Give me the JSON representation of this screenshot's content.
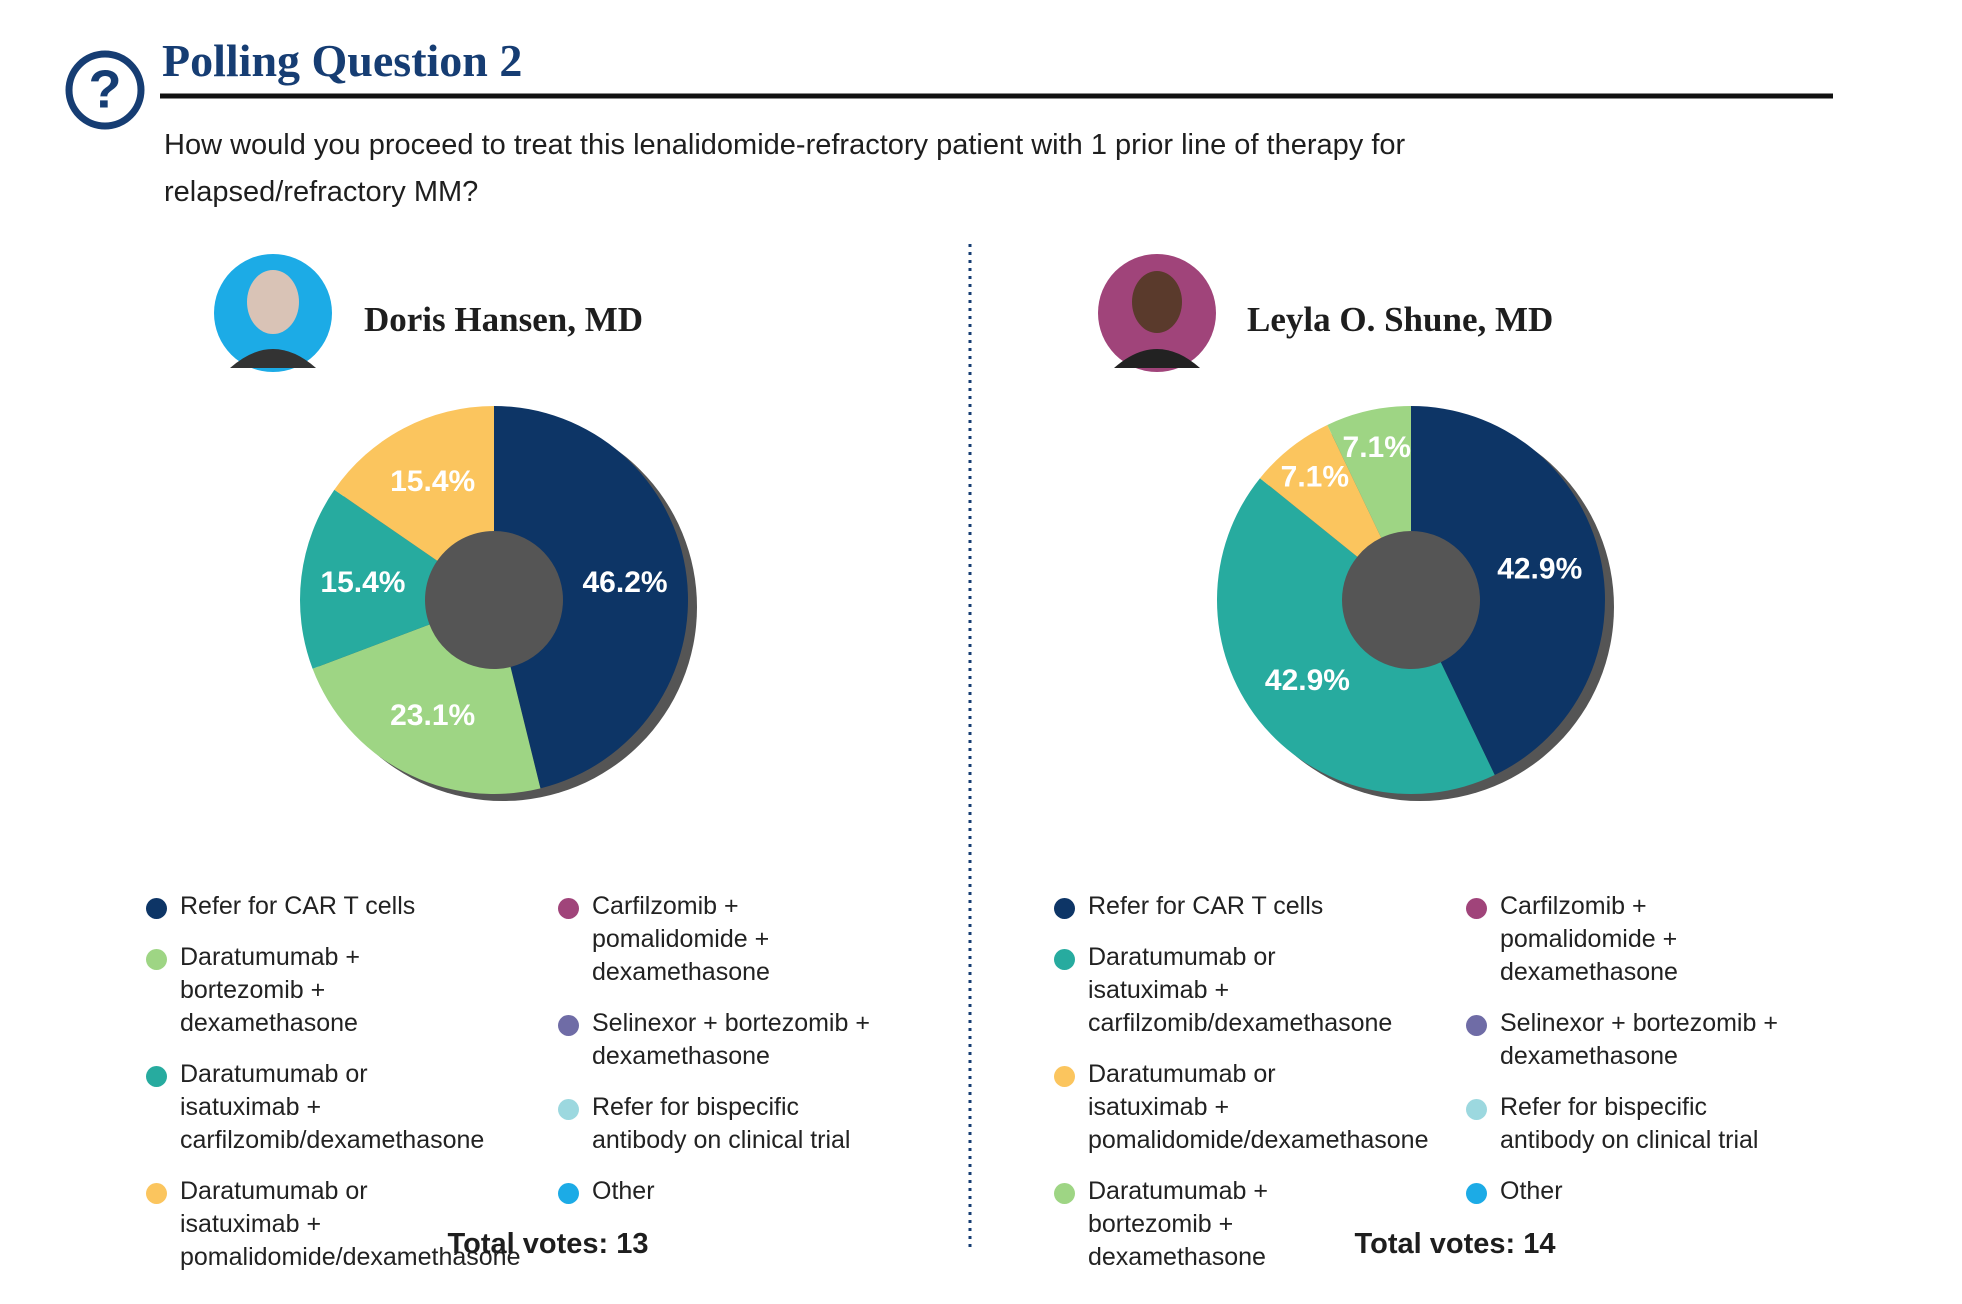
{
  "header": {
    "title": "Polling Question 2",
    "question": "How would you proceed to treat this lenalidomide-refractory patient with 1 prior line of therapy for relapsed/refractory MM?"
  },
  "chart_data": [
    {
      "type": "pie",
      "title": "Doris Hansen, MD",
      "categories": [
        "Refer for CAR T cells",
        "Daratumumab + bortezomib + dexamethasone",
        "Daratumumab or isatuximab + carfilzomib/dexamethasone",
        "Daratumumab or isatuximab + pomalidomide/dexamethasone",
        "Carfilzomib + pomalidomide + dexamethasone",
        "Selinexor + bortezomib + dexamethasone",
        "Refer for bispecific antibody on clinical trial",
        "Other"
      ],
      "values": [
        46.2,
        23.1,
        15.4,
        15.4,
        0,
        0,
        0,
        0
      ],
      "value_labels": [
        "46.2%",
        "23.1%",
        "15.4%",
        "15.4%",
        null,
        null,
        null,
        null
      ],
      "colors": [
        "#0d3566",
        "#9ed584",
        "#27ab9f",
        "#fbc55e",
        "#a0447a",
        "#6f6ca6",
        "#9cd8df",
        "#1cabe6"
      ],
      "total_label": "Total votes: 13"
    },
    {
      "type": "pie",
      "title": "Leyla O. Shune, MD",
      "categories": [
        "Refer for CAR T cells",
        "Daratumumab or isatuximab + carfilzomib/dexamethasone",
        "Daratumumab or isatuximab + pomalidomide/dexamethasone",
        "Daratumumab + bortezomib + dexamethasone",
        "Carfilzomib + pomalidomide + dexamethasone",
        "Selinexor + bortezomib + dexamethasone",
        "Refer for bispecific antibody on clinical trial",
        "Other"
      ],
      "values": [
        42.9,
        42.9,
        7.1,
        7.1,
        0,
        0,
        0,
        0
      ],
      "value_labels": [
        "42.9%",
        "42.9%",
        "7.1%",
        "7.1%",
        null,
        null,
        null,
        null
      ],
      "colors": [
        "#0d3566",
        "#27ab9f",
        "#fbc55e",
        "#9ed584",
        "#a0447a",
        "#6f6ca6",
        "#9cd8df",
        "#1cabe6"
      ],
      "total_label": "Total votes: 14"
    }
  ]
}
